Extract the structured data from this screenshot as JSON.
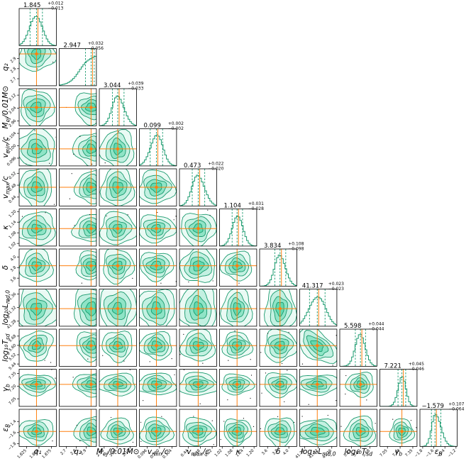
{
  "chart_data": {
    "type": "corner",
    "colors": {
      "contour": "#1a9a6e",
      "fill": "#4fd4a6",
      "truth": "#ff7f0e",
      "frame": "#000000"
    },
    "parameters": [
      {
        "label": "q₁",
        "title": "1.845",
        "plus": "+0.012",
        "minus": "−0.013",
        "median": 1.845,
        "lo": 1.832,
        "hi": 1.857,
        "range": [
          1.81,
          1.885
        ],
        "ticks": [
          1.825,
          1.85,
          1.875
        ],
        "tick_labels": [
          "1.825",
          "1.850",
          "1.875"
        ],
        "truncated": false
      },
      {
        "label": "q₂",
        "title": "2.947",
        "plus": "+0.032",
        "minus": "−0.056",
        "median": 2.947,
        "lo": 2.891,
        "hi": 2.979,
        "range": [
          2.63,
          3.0
        ],
        "ticks": [
          2.7,
          2.8,
          2.9
        ],
        "tick_labels": [
          "2.7",
          "2.8",
          "2.9"
        ],
        "truncated": true
      },
      {
        "label": "M_ej/0.01M⊙",
        "title": "3.044",
        "plus": "+0.039",
        "minus": "−0.033",
        "median": 3.044,
        "lo": 3.011,
        "hi": 3.083,
        "range": [
          2.93,
          3.16
        ],
        "ticks": [
          2.96,
          3.04,
          3.12
        ],
        "tick_labels": [
          "2.96",
          "3.04",
          "3.12"
        ],
        "truncated": false
      },
      {
        "label": "v_min/c",
        "title": "0.099",
        "plus": "+0.002",
        "minus": "−0.002",
        "median": 0.099,
        "lo": 0.097,
        "hi": 0.101,
        "range": [
          0.0935,
          0.1055
        ],
        "ticks": [
          0.096,
          0.1,
          0.104
        ],
        "tick_labels": [
          "0.096",
          "0.100",
          "0.104"
        ],
        "truncated": false
      },
      {
        "label": "v_max/c",
        "title": "0.473",
        "plus": "+0.022",
        "minus": "−0.020",
        "median": 0.473,
        "lo": 0.453,
        "hi": 0.495,
        "range": [
          0.41,
          0.535
        ],
        "ticks": [
          0.44,
          0.48,
          0.52
        ],
        "tick_labels": [
          "0.44",
          "0.48",
          "0.52"
        ],
        "truncated": false
      },
      {
        "label": "κ",
        "title": "1.104",
        "plus": "+0.031",
        "minus": "−0.028",
        "median": 1.104,
        "lo": 1.076,
        "hi": 1.135,
        "range": [
          1.005,
          1.215
        ],
        "ticks": [
          1.02,
          1.08,
          1.14,
          1.2
        ],
        "tick_labels": [
          "1.02",
          "1.08",
          "1.14",
          "1.20"
        ],
        "truncated": false
      },
      {
        "label": "δ",
        "title": "3.834",
        "plus": "+0.108",
        "minus": "−0.098",
        "median": 3.834,
        "lo": 3.736,
        "hi": 3.942,
        "range": [
          3.45,
          4.15
        ],
        "ticks": [
          3.6,
          3.8,
          4.0
        ],
        "tick_labels": [
          "3.6",
          "3.8",
          "4.0"
        ],
        "truncated": false
      },
      {
        "label": "log₁₀L_md,0",
        "title": "41.317",
        "plus": "+0.023",
        "minus": "−0.023",
        "median": 41.317,
        "lo": 41.294,
        "hi": 41.34,
        "range": [
          41.265,
          41.375
        ],
        "ticks": [
          41.28,
          41.32,
          41.36
        ],
        "tick_labels": [
          "41.28",
          "41.32",
          "41.36"
        ],
        "truncated": false
      },
      {
        "label": "log₁₀T_sd",
        "title": "5.598",
        "plus": "+0.044",
        "minus": "−0.044",
        "median": 5.598,
        "lo": 5.554,
        "hi": 5.642,
        "range": [
          5.42,
          5.74
        ],
        "ticks": [
          5.52,
          5.6,
          5.68
        ],
        "tick_labels": [
          "5.52",
          "5.60",
          "5.68"
        ],
        "y_ticks": [
          5.44,
          5.52,
          5.6,
          5.68
        ],
        "y_tick_labels": [
          "5.44",
          "5.52",
          "5.60",
          "5.68"
        ],
        "truncated": false
      },
      {
        "label": "γ_b",
        "title": "7.221",
        "plus": "+0.045",
        "minus": "−0.046",
        "median": 7.221,
        "lo": 7.175,
        "hi": 7.266,
        "range": [
          6.96,
          7.4
        ],
        "ticks": [
          7.05,
          7.2,
          7.35
        ],
        "tick_labels": [
          "7.05",
          "7.20",
          "7.35"
        ],
        "truncated": false
      },
      {
        "label": "ε_B",
        "title": "−1.579",
        "plus": "+0.107",
        "minus": "−0.064",
        "median": -1.579,
        "lo": -1.643,
        "hi": -1.472,
        "range": [
          -1.85,
          -1.18
        ],
        "ticks": [
          -1.8,
          -1.6,
          -1.4,
          -1.2
        ],
        "tick_labels": [
          "−1.8",
          "−1.6",
          "−1.4",
          "−1.2"
        ],
        "y_ticks": [
          -1.8,
          -1.6,
          -1.4
        ],
        "y_tick_labels": [
          "−1.8",
          "−1.6",
          "−1.4"
        ],
        "truncated": false
      }
    ],
    "truth_lines": true,
    "grid": false,
    "legend": "none"
  }
}
